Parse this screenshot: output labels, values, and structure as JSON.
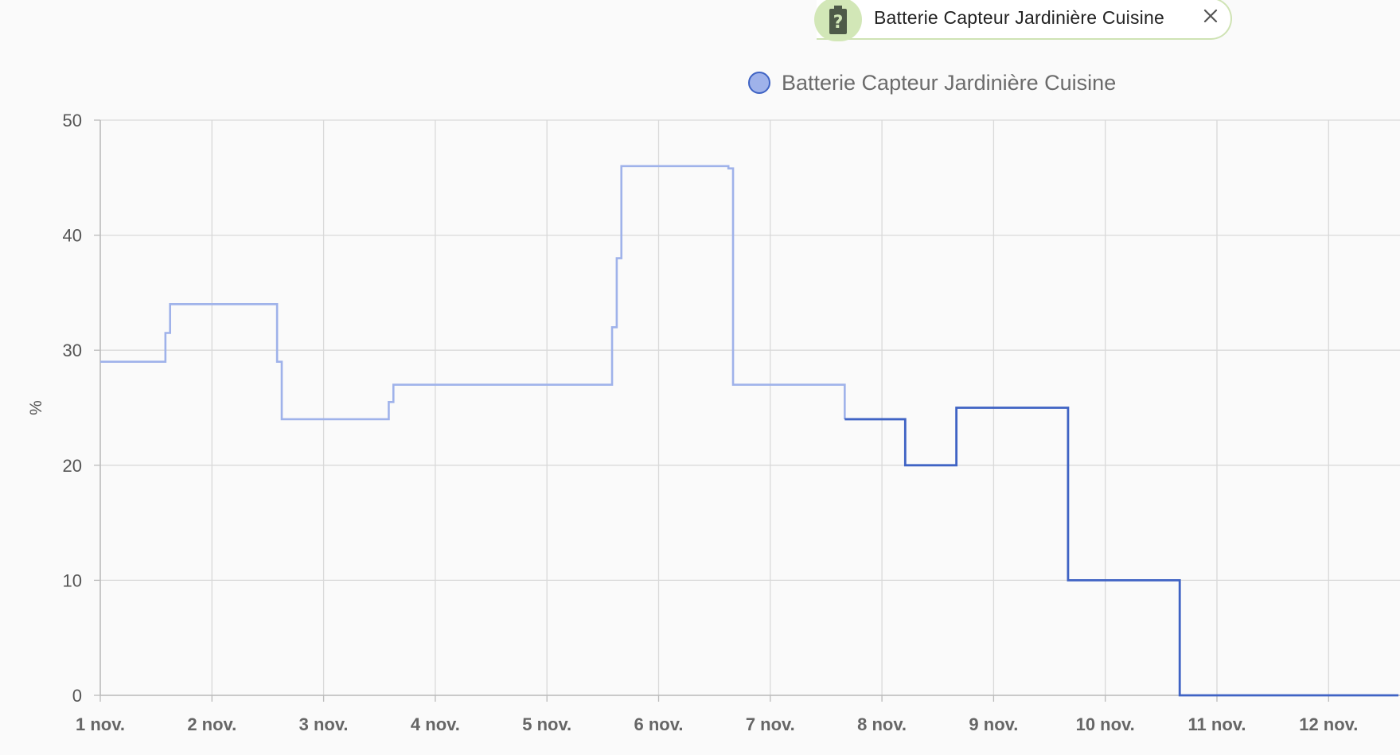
{
  "entity_chip": {
    "label": "Batterie Capteur Jardinière Cuisine",
    "icon": "battery-unknown-icon",
    "close_icon": "close-icon"
  },
  "legend": {
    "label": "Batterie Capteur Jardinière Cuisine"
  },
  "chart_data": {
    "type": "line",
    "step": true,
    "ylabel": "%",
    "ylim": [
      0,
      50
    ],
    "yticks": [
      0,
      10,
      20,
      30,
      40,
      50
    ],
    "xticks": [
      "1 nov.",
      "2 nov.",
      "3 nov.",
      "4 nov.",
      "5 nov.",
      "6 nov.",
      "7 nov.",
      "8 nov.",
      "9 nov.",
      "10 nov.",
      "11 nov.",
      "12 nov."
    ],
    "xlim": [
      "1 nov. 00:00",
      "12 nov. 15:00"
    ],
    "grid": true,
    "colors": {
      "faded": "#9fb2ea",
      "bright": "#3f63c4",
      "grid": "#d9d9d9"
    },
    "series": [
      {
        "name": "Batterie Capteur Jardinière Cuisine",
        "points": [
          [
            "1 nov. 00:00",
            29
          ],
          [
            "1 nov. 14:00",
            31.5
          ],
          [
            "1 nov. 15:00",
            34
          ],
          [
            "2 nov. 14:00",
            29
          ],
          [
            "2 nov. 15:00",
            24
          ],
          [
            "3 nov. 14:00",
            25.5
          ],
          [
            "3 nov. 15:00",
            27
          ],
          [
            "5 nov. 14:00",
            32
          ],
          [
            "5 nov. 15:00",
            38
          ],
          [
            "5 nov. 16:00",
            46
          ],
          [
            "6 nov. 15:00",
            45.8
          ],
          [
            "6 nov. 16:00",
            27
          ],
          [
            "7 nov. 16:00",
            24
          ],
          [
            "8 nov. 05:00",
            20
          ],
          [
            "8 nov. 16:00",
            25
          ],
          [
            "9 nov. 16:00",
            10
          ],
          [
            "10 nov. 16:00",
            0
          ],
          [
            "12 nov. 15:00",
            0
          ]
        ]
      }
    ],
    "highlight_from": "7 nov. 16:00"
  }
}
